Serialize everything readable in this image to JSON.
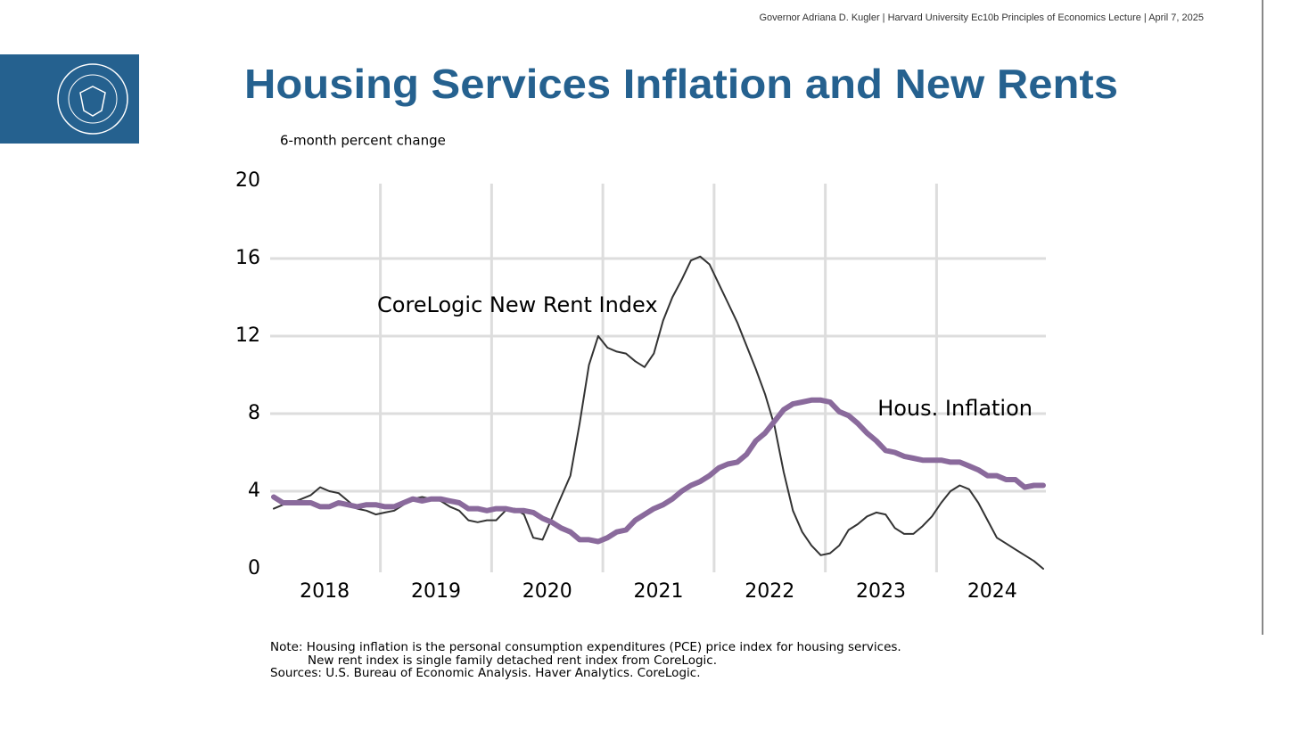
{
  "header": "Governor Adriana D. Kugler | Harvard University Ec10b Principles of Economics Lecture | April 7, 2025",
  "chart_data": {
    "type": "line",
    "title": "Housing Services Inflation and New Rents",
    "y_label": "6-month percent change",
    "notes": [
      "Note: Housing inflation is the personal consumption expenditures (PCE) price index for housing services.",
      "New rent index is single family detached rent index from CoreLogic.",
      "Sources: U.S. Bureau of Economic Analysis. Haver Analytics. CoreLogic."
    ],
    "categories": [
      null,
      null,
      null,
      null,
      null,
      null,
      "2018",
      null,
      null,
      null,
      null,
      null,
      null,
      null,
      null,
      null,
      null,
      null,
      "2019",
      null,
      null,
      null,
      null,
      null,
      null,
      null,
      null,
      null,
      null,
      null,
      "2020",
      null,
      null,
      null,
      null,
      null,
      null,
      null,
      null,
      null,
      null,
      null,
      "2021",
      null,
      null,
      null,
      null,
      null,
      null,
      null,
      null,
      null,
      null,
      null,
      "2022",
      null,
      null,
      null,
      null,
      null,
      null,
      null,
      null,
      null,
      null,
      null,
      "2023",
      null,
      null,
      null,
      null,
      null,
      null,
      null,
      null,
      null,
      null,
      null,
      "2024",
      null,
      null,
      null,
      null,
      null
    ],
    "series": [
      {
        "name": "CoreLogic New Rent Index",
        "color": "#333333",
        "width": 2,
        "values": [
          3.1,
          3.3,
          3.4,
          3.6,
          3.8,
          4.2,
          4.0,
          3.9,
          3.5,
          3.1,
          3.0,
          2.8,
          2.9,
          3.0,
          3.3,
          3.6,
          3.7,
          3.6,
          3.5,
          3.2,
          3.0,
          2.5,
          2.4,
          2.5,
          2.5,
          3.0,
          3.1,
          2.8,
          1.6,
          1.5,
          2.6,
          3.7,
          4.8,
          7.5,
          10.5,
          12.0,
          11.4,
          11.2,
          11.1,
          10.7,
          10.4,
          11.1,
          12.8,
          14.0,
          14.9,
          15.9,
          16.1,
          15.7,
          14.7,
          13.7,
          12.7,
          11.5,
          10.3,
          9.0,
          7.4,
          5.0,
          3.0,
          1.9,
          1.2,
          0.7,
          0.8,
          1.2,
          2.0,
          2.3,
          2.7,
          2.9,
          2.8,
          2.1,
          1.8,
          1.8,
          2.2,
          2.7,
          3.4,
          4.0,
          4.3,
          4.1,
          3.4,
          2.5,
          1.6,
          1.3,
          1.0,
          0.7,
          0.4,
          0.0
        ]
      },
      {
        "name": "Hous. Inflation",
        "color": "#8a6a9c",
        "width": 6,
        "values": [
          3.7,
          3.4,
          3.4,
          3.4,
          3.4,
          3.2,
          3.2,
          3.4,
          3.3,
          3.2,
          3.3,
          3.3,
          3.2,
          3.2,
          3.4,
          3.6,
          3.5,
          3.6,
          3.6,
          3.5,
          3.4,
          3.1,
          3.1,
          3.0,
          3.1,
          3.1,
          3.0,
          3.0,
          2.9,
          2.6,
          2.4,
          2.1,
          1.9,
          1.5,
          1.5,
          1.4,
          1.6,
          1.9,
          2.0,
          2.5,
          2.8,
          3.1,
          3.3,
          3.6,
          4.0,
          4.3,
          4.5,
          4.8,
          5.2,
          5.4,
          5.5,
          5.9,
          6.6,
          7.0,
          7.6,
          8.2,
          8.5,
          8.6,
          8.7,
          8.7,
          8.6,
          8.1,
          7.9,
          7.5,
          7.0,
          6.6,
          6.1,
          6.0,
          5.8,
          5.7,
          5.6,
          5.6,
          5.6,
          5.5,
          5.5,
          5.3,
          5.1,
          4.8,
          4.8,
          4.6,
          4.6,
          4.2,
          4.3,
          4.3
        ]
      }
    ],
    "ylim": [
      0,
      20
    ],
    "yticks": [
      0,
      4,
      8,
      12,
      16,
      20
    ],
    "grid": true,
    "grid_color": "#dddddd"
  }
}
